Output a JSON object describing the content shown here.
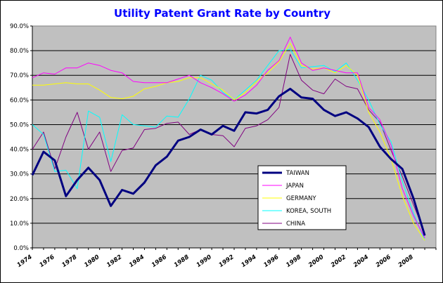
{
  "chart_data": {
    "type": "line",
    "title": "Utility Patent Grant Rate by Country",
    "xlabel": "",
    "ylabel": "",
    "x": [
      1974,
      1975,
      1976,
      1977,
      1978,
      1979,
      1980,
      1981,
      1982,
      1983,
      1984,
      1985,
      1986,
      1987,
      1988,
      1989,
      1990,
      1991,
      1992,
      1993,
      1994,
      1995,
      1996,
      1997,
      1998,
      1999,
      2000,
      2001,
      2002,
      2003,
      2004,
      2005,
      2006,
      2007,
      2008,
      2009,
      2010
    ],
    "xticks": [
      "1974",
      "1976",
      "1978",
      "1980",
      "1982",
      "1984",
      "1986",
      "1988",
      "1990",
      "1992",
      "1994",
      "1996",
      "1998",
      "2000",
      "2002",
      "2004",
      "2006",
      "2008"
    ],
    "ylim": [
      0,
      90
    ],
    "yticks": [
      "0.0%",
      "10.0%",
      "20.0%",
      "30.0%",
      "40.0%",
      "50.0%",
      "60.0%",
      "70.0%",
      "80.0%",
      "90.0%"
    ],
    "grid": true,
    "legend_position": "center-right",
    "series": [
      {
        "name": "TAIWAN",
        "color": "#000080",
        "width": 3,
        "values": [
          29.5,
          39,
          35.5,
          21,
          27.5,
          32.5,
          27.5,
          17,
          23.5,
          22,
          26.5,
          33.5,
          37,
          43.5,
          45,
          48,
          46,
          49.5,
          47.5,
          55,
          54.5,
          56,
          61.5,
          64.5,
          61,
          60.5,
          56,
          53.5,
          55,
          52.5,
          49,
          41,
          36,
          32,
          20,
          5,
          null
        ]
      },
      {
        "name": "JAPAN",
        "color": "#ff00ff",
        "width": 1,
        "values": [
          69,
          71,
          70.5,
          73,
          73,
          75,
          74,
          72,
          71,
          67.5,
          67,
          67,
          67,
          68.5,
          70,
          67,
          65,
          62.5,
          59.5,
          62,
          66,
          72,
          76,
          85.5,
          75,
          72,
          73,
          72,
          71,
          71,
          57,
          52,
          41.5,
          24,
          13,
          4,
          null
        ]
      },
      {
        "name": "GERMANY",
        "color": "#ffff00",
        "width": 1,
        "values": [
          66,
          66,
          66.5,
          67,
          66.5,
          66.5,
          64,
          61,
          60.5,
          61.5,
          64.5,
          65.5,
          67,
          67.5,
          69,
          69,
          66.5,
          64,
          60,
          63,
          67.5,
          71,
          75.5,
          83,
          74,
          72.5,
          73,
          71,
          74,
          70,
          55,
          47,
          36,
          21,
          10,
          3,
          null
        ]
      },
      {
        "name": "KOREA, SOUTH",
        "color": "#00ffff",
        "width": 1,
        "values": [
          50,
          46,
          31,
          31.5,
          24,
          55.5,
          53,
          35,
          54,
          50,
          49.5,
          49,
          53.5,
          53,
          60.5,
          70,
          68,
          63,
          60,
          64,
          68,
          74,
          80,
          80.5,
          73,
          73.5,
          74,
          71.5,
          75,
          68,
          60,
          50,
          43,
          27,
          14,
          3,
          null
        ]
      },
      {
        "name": "CHINA",
        "color": "#800080",
        "width": 1,
        "values": [
          40,
          47,
          32,
          45,
          55,
          40,
          47,
          31,
          39.5,
          40.5,
          48,
          48.5,
          50.5,
          51,
          46,
          48,
          46,
          45.5,
          41,
          48.5,
          49.5,
          52,
          57,
          78.5,
          68,
          64,
          62.5,
          68.5,
          65.5,
          64.5,
          56,
          51,
          39.5,
          29,
          17.5,
          6,
          null
        ]
      }
    ]
  }
}
